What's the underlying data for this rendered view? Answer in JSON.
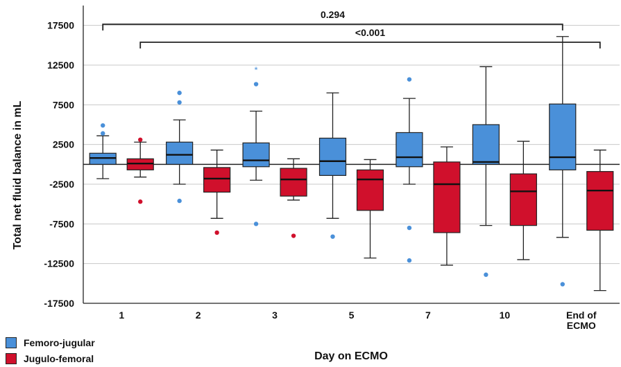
{
  "chart_data": {
    "type": "box",
    "title": "",
    "ylabel": "Total net fluid balance in mL",
    "xlabel": "Day on ECMO",
    "ylim": [
      -17500,
      20000
    ],
    "yticks": [
      -17500,
      -12500,
      -7500,
      -2500,
      2500,
      7500,
      12500,
      17500
    ],
    "yticklabels": [
      "-17500",
      "-12500",
      "-7500",
      "-2500",
      "2500",
      "7500",
      "12500",
      "17500"
    ],
    "reference_line": 0,
    "categories": [
      "1",
      "2",
      "3",
      "5",
      "7",
      "10",
      "End of ECMO"
    ],
    "series": [
      {
        "name": "Femoro-jugular",
        "color": "#4a90d9",
        "boxes": [
          {
            "min": -1800,
            "q1": 0,
            "median": 800,
            "q3": 1400,
            "max": 3600,
            "outliers": [
              4900,
              3900
            ]
          },
          {
            "min": -2500,
            "q1": 0,
            "median": 1200,
            "q3": 2800,
            "max": 5600,
            "outliers": [
              9000,
              7800,
              -4600
            ]
          },
          {
            "min": -2000,
            "q1": -300,
            "median": 500,
            "q3": 2700,
            "max": 6700,
            "outliers": [
              10100,
              -7500
            ],
            "extremes": [
              12000
            ]
          },
          {
            "min": -6800,
            "q1": -1400,
            "median": 400,
            "q3": 3300,
            "max": 9000,
            "outliers": [
              -9100
            ]
          },
          {
            "min": -2500,
            "q1": -300,
            "median": 900,
            "q3": 4000,
            "max": 8300,
            "outliers": [
              10700,
              -8000,
              -12100
            ]
          },
          {
            "min": -7700,
            "q1": 0,
            "median": 300,
            "q3": 5000,
            "max": 12300,
            "outliers": [
              -13900
            ]
          },
          {
            "min": -9200,
            "q1": -700,
            "median": 900,
            "q3": 7600,
            "max": 16100,
            "outliers": [
              -15100
            ]
          }
        ]
      },
      {
        "name": "Jugulo-femoral",
        "color": "#d0102c",
        "boxes": [
          {
            "min": -1600,
            "q1": -700,
            "median": 100,
            "q3": 700,
            "max": 2800,
            "outliers": [
              3100,
              -4700
            ]
          },
          {
            "min": -6800,
            "q1": -3500,
            "median": -1800,
            "q3": -400,
            "max": 1800,
            "outliers": [
              -8600
            ]
          },
          {
            "min": -4500,
            "q1": -4000,
            "median": -1900,
            "q3": -500,
            "max": 700,
            "outliers": [
              -9000
            ]
          },
          {
            "min": -11800,
            "q1": -5800,
            "median": -1900,
            "q3": -700,
            "max": 600,
            "outliers": []
          },
          {
            "min": -12700,
            "q1": -8600,
            "median": -2500,
            "q3": 300,
            "max": 2200,
            "outliers": []
          },
          {
            "min": -12000,
            "q1": -7700,
            "median": -3400,
            "q3": -1200,
            "max": 2900,
            "outliers": []
          },
          {
            "min": -15900,
            "q1": -8300,
            "median": -3300,
            "q3": -900,
            "max": 1800,
            "outliers": []
          }
        ]
      }
    ],
    "comparisons": [
      {
        "from": "1",
        "to": "End of ECMO",
        "series_from": "Femoro-jugular",
        "series_to": "Femoro-jugular",
        "label": "0.294"
      },
      {
        "from": "1",
        "to": "End of ECMO",
        "series_from": "Jugulo-femoral",
        "series_to": "Jugulo-femoral",
        "label": "<0.001"
      }
    ],
    "legend_position": "bottom-left",
    "grid": "horizontal"
  }
}
